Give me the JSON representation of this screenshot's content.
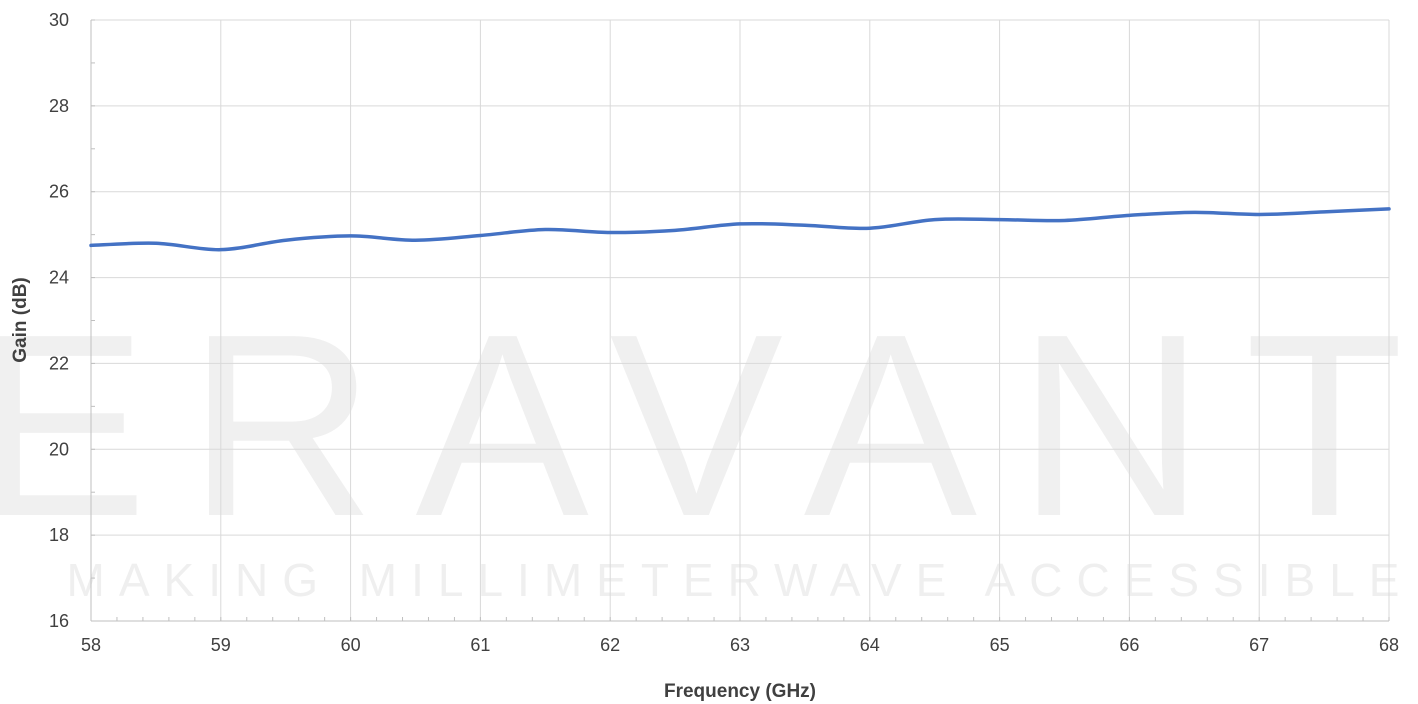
{
  "watermark": {
    "brand": "ERAVANT",
    "tagline": "MAKING MILLIMETERWAVE ACCESSIBLE"
  },
  "chart_data": {
    "type": "line",
    "title": "",
    "xlabel": "Frequency (GHz)",
    "ylabel": "Gain (dB)",
    "xlim": [
      58,
      68
    ],
    "ylim": [
      16,
      30
    ],
    "xticks": [
      58,
      59,
      60,
      61,
      62,
      63,
      64,
      65,
      66,
      67,
      68
    ],
    "yticks": [
      16,
      18,
      20,
      22,
      24,
      26,
      28,
      30
    ],
    "grid": true,
    "legend": "none",
    "series": [
      {
        "color": "#4472C4",
        "x": [
          58,
          58.5,
          59,
          59.5,
          60,
          60.5,
          61,
          61.5,
          62,
          62.5,
          63,
          63.5,
          64,
          64.5,
          65,
          65.5,
          66,
          66.5,
          67,
          67.5,
          68
        ],
        "y": [
          24.75,
          24.8,
          24.65,
          24.87,
          24.97,
          24.87,
          24.98,
          25.12,
          25.05,
          25.1,
          25.25,
          25.22,
          25.15,
          25.35,
          25.35,
          25.33,
          25.45,
          25.52,
          25.47,
          25.53,
          25.6
        ]
      }
    ]
  }
}
